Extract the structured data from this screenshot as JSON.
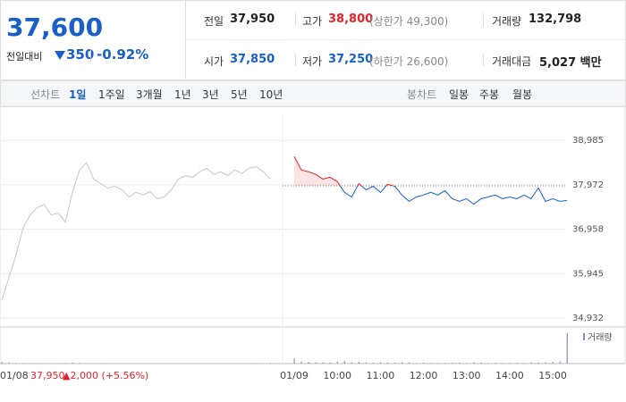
{
  "header": {
    "price": "37,600",
    "change_label": "전일대비",
    "change": "350",
    "change_rate": "-0.92%",
    "stats": [
      {
        "label": "전일",
        "value": "37,950"
      },
      {
        "label": "고가",
        "value": "38,800",
        "note": "(상한가 49,300)"
      },
      {
        "label": "거래량",
        "value": "132,798"
      },
      {
        "label": "시가",
        "value": "37,850"
      },
      {
        "label": "저가",
        "value": "37,250",
        "note": "(하한가 26,600)"
      },
      {
        "label": "거래대금",
        "value": "5,027 백만"
      }
    ]
  },
  "tabs": {
    "line_label": "선차트",
    "line": [
      "1일",
      "1주일",
      "3개월",
      "1년",
      "3년",
      "5년",
      "10년"
    ],
    "candle_label": "봉차트",
    "candle": [
      "일봉",
      "주봉",
      "월봉"
    ]
  },
  "chart_data": {
    "type": "line",
    "categories": [
      "01/08",
      null,
      null,
      null,
      null,
      null,
      null,
      null,
      null,
      null,
      null,
      null,
      null,
      null,
      null,
      null,
      null,
      null,
      null,
      null,
      null,
      null,
      null,
      null,
      null,
      null,
      null,
      null,
      null,
      null,
      null,
      null,
      null,
      null,
      null,
      null,
      null,
      null,
      null,
      "01/09",
      null,
      null,
      null,
      null,
      null,
      "10:00",
      null,
      null,
      null,
      null,
      null,
      "11:00",
      null,
      null,
      null,
      null,
      null,
      "12:00",
      null,
      null,
      null,
      null,
      null,
      "13:00",
      null,
      null,
      null,
      null,
      null,
      "14:00",
      null,
      null,
      null,
      null,
      null,
      "15:00",
      null,
      null
    ],
    "series": [
      {
        "color": "#c6c6c6",
        "values": [
          35340,
          35850,
          36365,
          36980,
          37285,
          37450,
          37530,
          37285,
          37330,
          37120,
          37800,
          38310,
          38475,
          38105,
          38000,
          37900,
          37940,
          37860,
          37695,
          37800,
          37740,
          37820,
          37655,
          37695,
          37860,
          38105,
          38185,
          38145,
          38270,
          38350,
          38210,
          38270,
          38185,
          38310,
          38230,
          38350,
          38390,
          38270,
          38105,
          null,
          null,
          null,
          null,
          null,
          null,
          null,
          null,
          null,
          null,
          null,
          null,
          null,
          null,
          null,
          null,
          null,
          null,
          null,
          null,
          null,
          null,
          null,
          null,
          null,
          null,
          null,
          null,
          null,
          null,
          null,
          null,
          null,
          null,
          null,
          null,
          null,
          null,
          null
        ]
      },
      {
        "color": "#e2232a",
        "down_color": "#1a5fc8",
        "values": [
          null,
          null,
          null,
          null,
          null,
          null,
          null,
          null,
          null,
          null,
          null,
          null,
          null,
          null,
          null,
          null,
          null,
          null,
          null,
          null,
          null,
          null,
          null,
          null,
          null,
          null,
          null,
          null,
          null,
          null,
          null,
          null,
          null,
          null,
          null,
          null,
          null,
          null,
          null,
          38620,
          38310,
          38270,
          38210,
          38105,
          38145,
          38045,
          37800,
          37695,
          38000,
          37860,
          37940,
          37800,
          37985,
          37940,
          37740,
          37595,
          37695,
          37740,
          37800,
          37740,
          37840,
          37655,
          37595,
          37655,
          37530,
          37655,
          37695,
          37740,
          37655,
          37695,
          37655,
          37740,
          37655,
          37900,
          37595,
          37655,
          37595,
          37615
        ]
      }
    ],
    "reference": {
      "value": 37950,
      "label": "37,950"
    },
    "annotation": "▲2,000 (+5.56%)",
    "ylim": [
      34730,
      39580
    ],
    "yticks": [
      {
        "value": 38985,
        "label": "38,985"
      },
      {
        "value": 37972,
        "label": "37,972"
      },
      {
        "value": 36958,
        "label": "36,958"
      },
      {
        "value": 35945,
        "label": "35,945"
      },
      {
        "value": 34932,
        "label": "34,932"
      }
    ],
    "grid": true,
    "volume": {
      "name": "거래량",
      "color": "#8f84c9",
      "lim": [
        0,
        60000
      ],
      "values": [
        3000,
        1500,
        1200,
        900,
        800,
        700,
        600,
        500,
        700,
        900,
        1500,
        1200,
        600,
        500,
        400,
        500,
        400,
        300,
        500,
        400,
        300,
        400,
        500,
        600,
        400,
        300,
        500,
        400,
        300,
        400,
        300,
        400,
        500,
        300,
        400,
        600,
        500,
        400,
        1200,
        9000,
        4000,
        3000,
        2500,
        2000,
        1800,
        3500,
        5000,
        2500,
        3000,
        2000,
        1500,
        2200,
        1800,
        1500,
        2500,
        2000,
        1200,
        1500,
        1300,
        1000,
        1200,
        1400,
        1600,
        1300,
        2000,
        1500,
        1200,
        1400,
        1000,
        1200,
        1300,
        1100,
        2500,
        1800,
        2500,
        3000,
        4000,
        55000
      ]
    }
  }
}
